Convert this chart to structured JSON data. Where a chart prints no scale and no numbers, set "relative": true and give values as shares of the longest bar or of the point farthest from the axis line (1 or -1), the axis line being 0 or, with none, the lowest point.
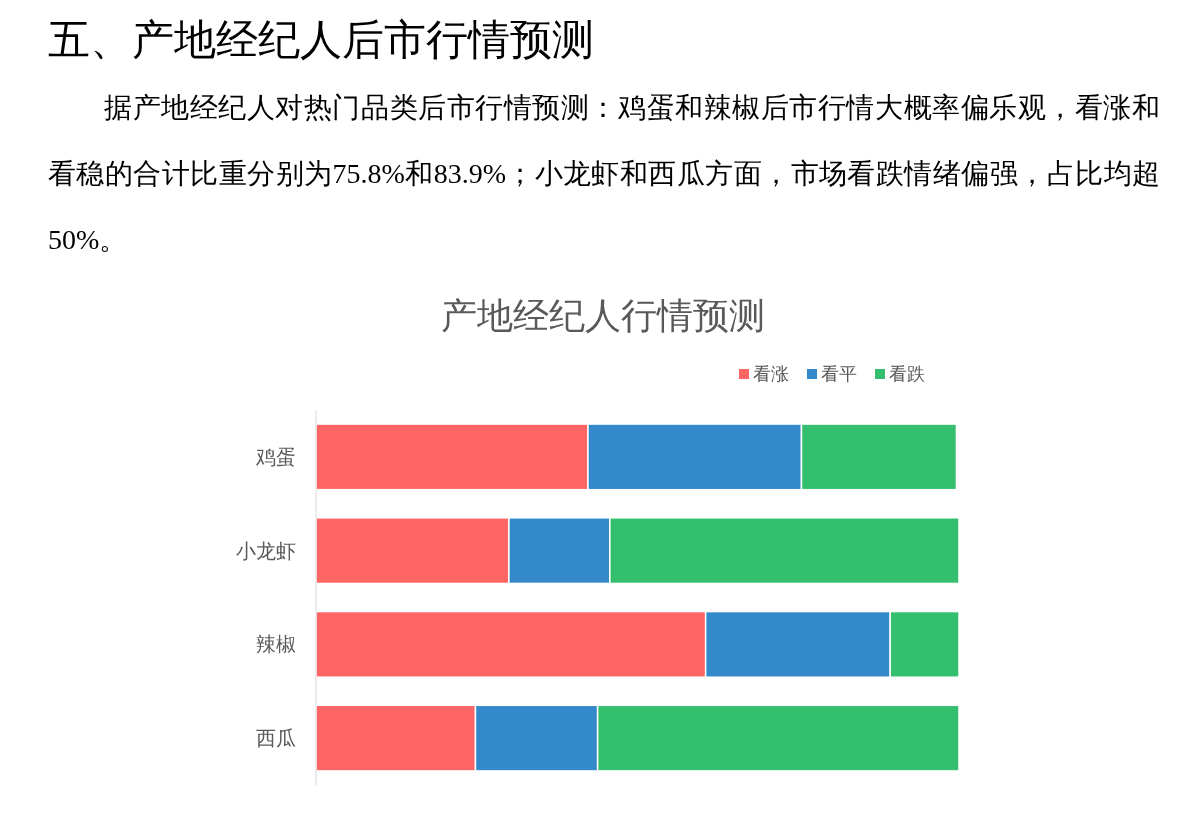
{
  "chart_data": {
    "type": "bar",
    "orientation": "horizontal",
    "stacked": true,
    "relative": true,
    "title": "产地经纪人行情预测",
    "annotations": [
      "五、产地经纪人后市行情预测",
      "据产地经纪人对热门品类后市行情预测：鸡蛋和辣椒后市行情大概率偏乐观，看涨和看稳的合计比重分别为75.8%和83.9%；小龙虾和西瓜方面，市场看跌情绪偏强，占比均超50%。"
    ],
    "categories": [
      "鸡蛋",
      "小龙虾",
      "辣椒",
      "西瓜"
    ],
    "series": [
      {
        "name": "看涨",
        "color": "#fe6565",
        "values": [
          0.423,
          0.3,
          0.606,
          0.248
        ]
      },
      {
        "name": "看平",
        "color": "#3489ca",
        "values": [
          0.332,
          0.157,
          0.287,
          0.19
        ]
      },
      {
        "name": "看跌",
        "color": "#34bf6f",
        "values": [
          0.241,
          0.543,
          0.107,
          0.562
        ]
      }
    ],
    "legend": "top right"
  }
}
